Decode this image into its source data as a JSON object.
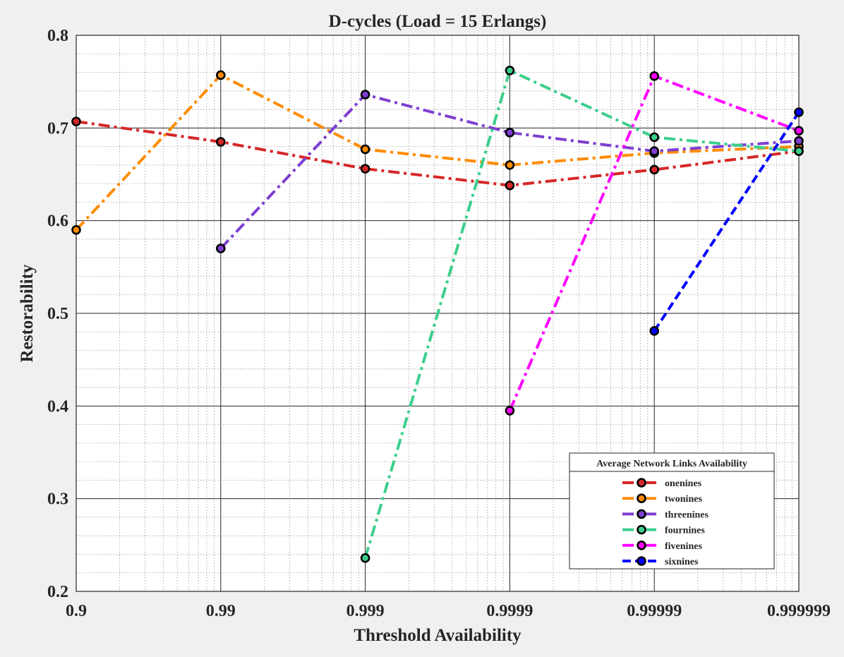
{
  "chart_data": {
    "type": "line",
    "title": "D-cycles (Load  = 15 Erlangs)",
    "xlabel": "Threshold Availability",
    "ylabel": "Restorability",
    "x_scale": "log",
    "x_ticks": [
      "0.9",
      "0.99",
      "0.999",
      "0.9999",
      "0.99999",
      "0.999999"
    ],
    "y_ticks": [
      "0.2",
      "0.3",
      "0.4",
      "0.5",
      "0.6",
      "0.7",
      "0.8"
    ],
    "ylim": [
      0.2,
      0.8
    ],
    "grid": "major and minor",
    "legend": {
      "title": "Average Network Links Availability",
      "placement": "bottom-right"
    },
    "series": [
      {
        "name": "onenines",
        "color": "#d62728",
        "dash": "dashdot",
        "points": [
          [
            0,
            0.707
          ],
          [
            1,
            0.685
          ],
          [
            2,
            0.656
          ],
          [
            3,
            0.638
          ],
          [
            4,
            0.655
          ],
          [
            5,
            0.675
          ]
        ]
      },
      {
        "name": "twonines",
        "color": "#ff8c00",
        "dash": "dashdot",
        "points": [
          [
            0,
            0.59
          ],
          [
            1,
            0.757
          ],
          [
            2,
            0.677
          ],
          [
            3,
            0.66
          ],
          [
            4,
            0.673
          ],
          [
            5,
            0.68
          ]
        ]
      },
      {
        "name": "threenines",
        "color": "#7e3fd1",
        "dash": "dashdot",
        "points": [
          [
            1,
            0.57
          ],
          [
            2,
            0.736
          ],
          [
            3,
            0.695
          ],
          [
            4,
            0.675
          ],
          [
            5,
            0.686
          ]
        ]
      },
      {
        "name": "fournines",
        "color": "#3ccf8c",
        "dash": "dashdot",
        "points": [
          [
            2,
            0.236
          ],
          [
            3,
            0.762
          ],
          [
            4,
            0.69
          ],
          [
            5,
            0.675
          ]
        ]
      },
      {
        "name": "fivenines",
        "color": "#ff00ff",
        "dash": "dashdot",
        "points": [
          [
            3,
            0.395
          ],
          [
            4,
            0.756
          ],
          [
            5,
            0.697
          ]
        ]
      },
      {
        "name": "sixnines",
        "color": "#0000ff",
        "dash": "dash",
        "points": [
          [
            4,
            0.481
          ],
          [
            5,
            0.717
          ]
        ]
      }
    ]
  }
}
